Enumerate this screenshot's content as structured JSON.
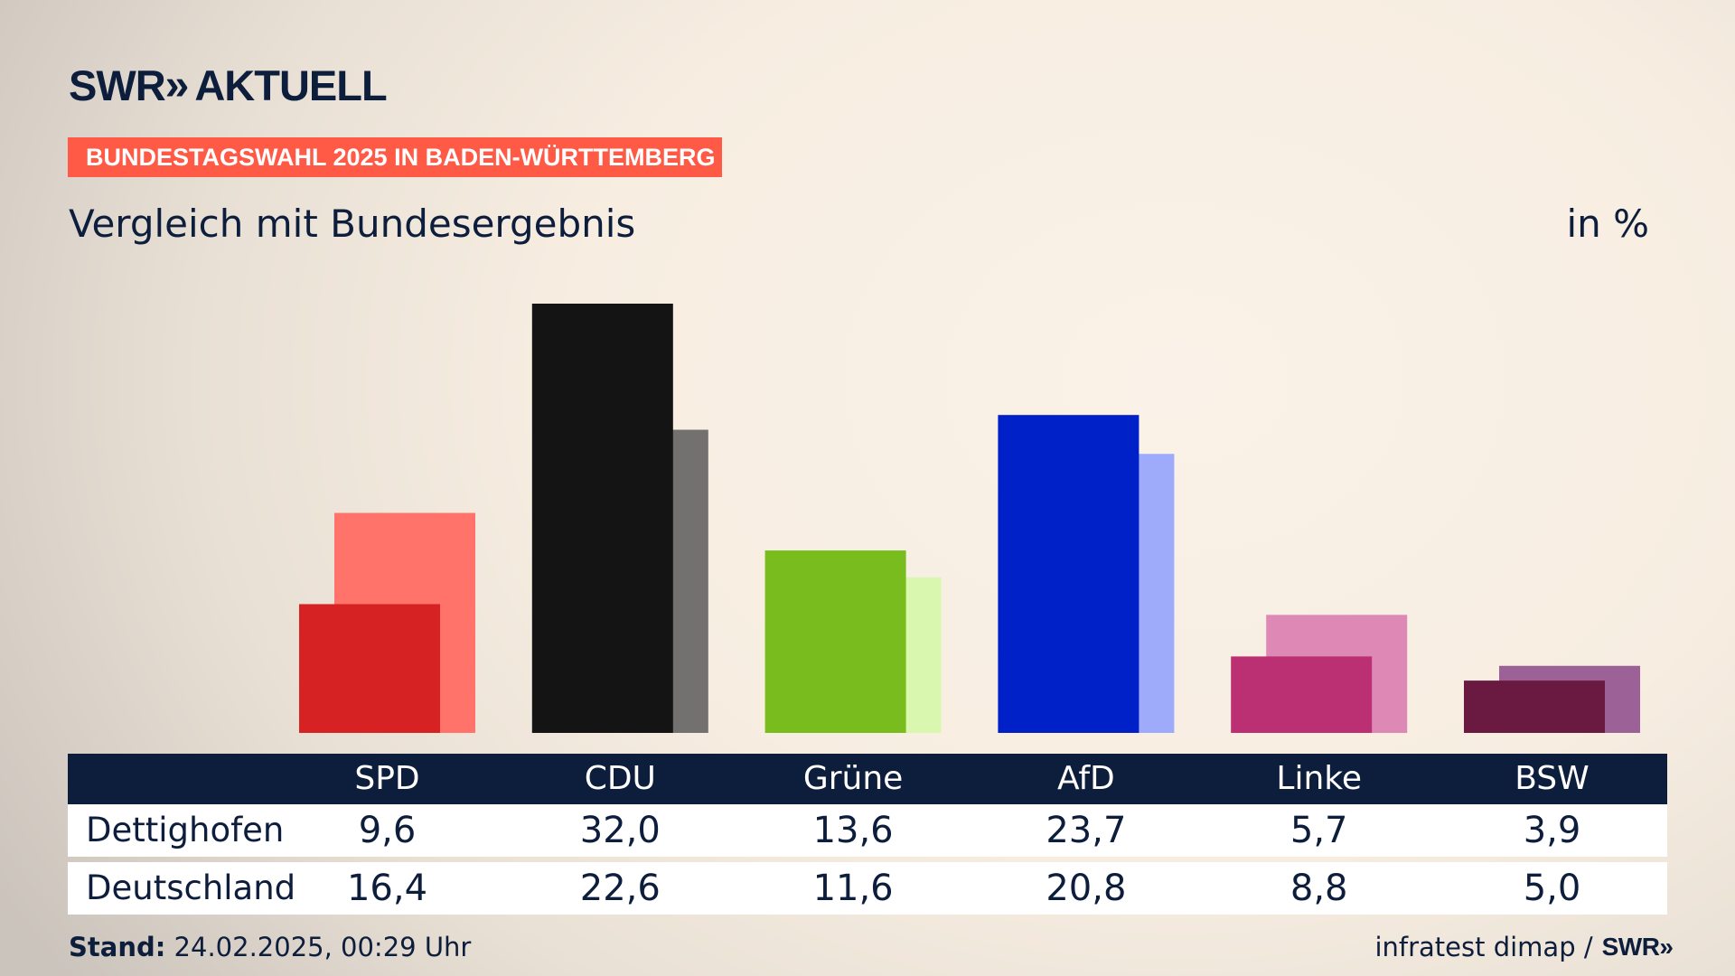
{
  "brand": {
    "name": "SWR",
    "chevrons": "»",
    "product": "AKTUELL"
  },
  "badge": "BUNDESTAGSWAHL 2025 IN BADEN-WÜRTTEMBERG",
  "subtitle": "Vergleich mit Bundesergebnis",
  "unit_label": "in %",
  "chart_data": {
    "type": "bar",
    "title": "Vergleich mit Bundesergebnis",
    "ylabel": "in %",
    "ylim": [
      0,
      32
    ],
    "categories": [
      "SPD",
      "CDU",
      "Grüne",
      "AfD",
      "Linke",
      "BSW"
    ],
    "series": [
      {
        "name": "Dettighofen",
        "values": [
          9.6,
          32.0,
          13.6,
          23.7,
          5.7,
          3.9
        ],
        "display": [
          "9,6",
          "32,0",
          "13,6",
          "23,7",
          "5,7",
          "3,9"
        ]
      },
      {
        "name": "Deutschland",
        "values": [
          16.4,
          22.6,
          11.6,
          20.8,
          8.8,
          5.0
        ],
        "display": [
          "16,4",
          "22,6",
          "11,6",
          "20,8",
          "8,8",
          "5,0"
        ]
      }
    ],
    "colors_primary": [
      "#d62222",
      "#141414",
      "#78bc1e",
      "#0020c8",
      "#bb2f73",
      "#6a1a40"
    ],
    "colors_secondary": [
      "#ff736b",
      "#737170",
      "#d9f7ae",
      "#9eaafa",
      "#de88b6",
      "#9c6197"
    ]
  },
  "footer": {
    "stand_label": "Stand:",
    "stand_value": "24.02.2025, 00:29 Uhr",
    "source": "infratest dimap /",
    "source_brand": "SWR",
    "source_chevrons": "»"
  },
  "colors": {
    "navy": "#0d1d3c",
    "badge": "#ff5a46"
  }
}
